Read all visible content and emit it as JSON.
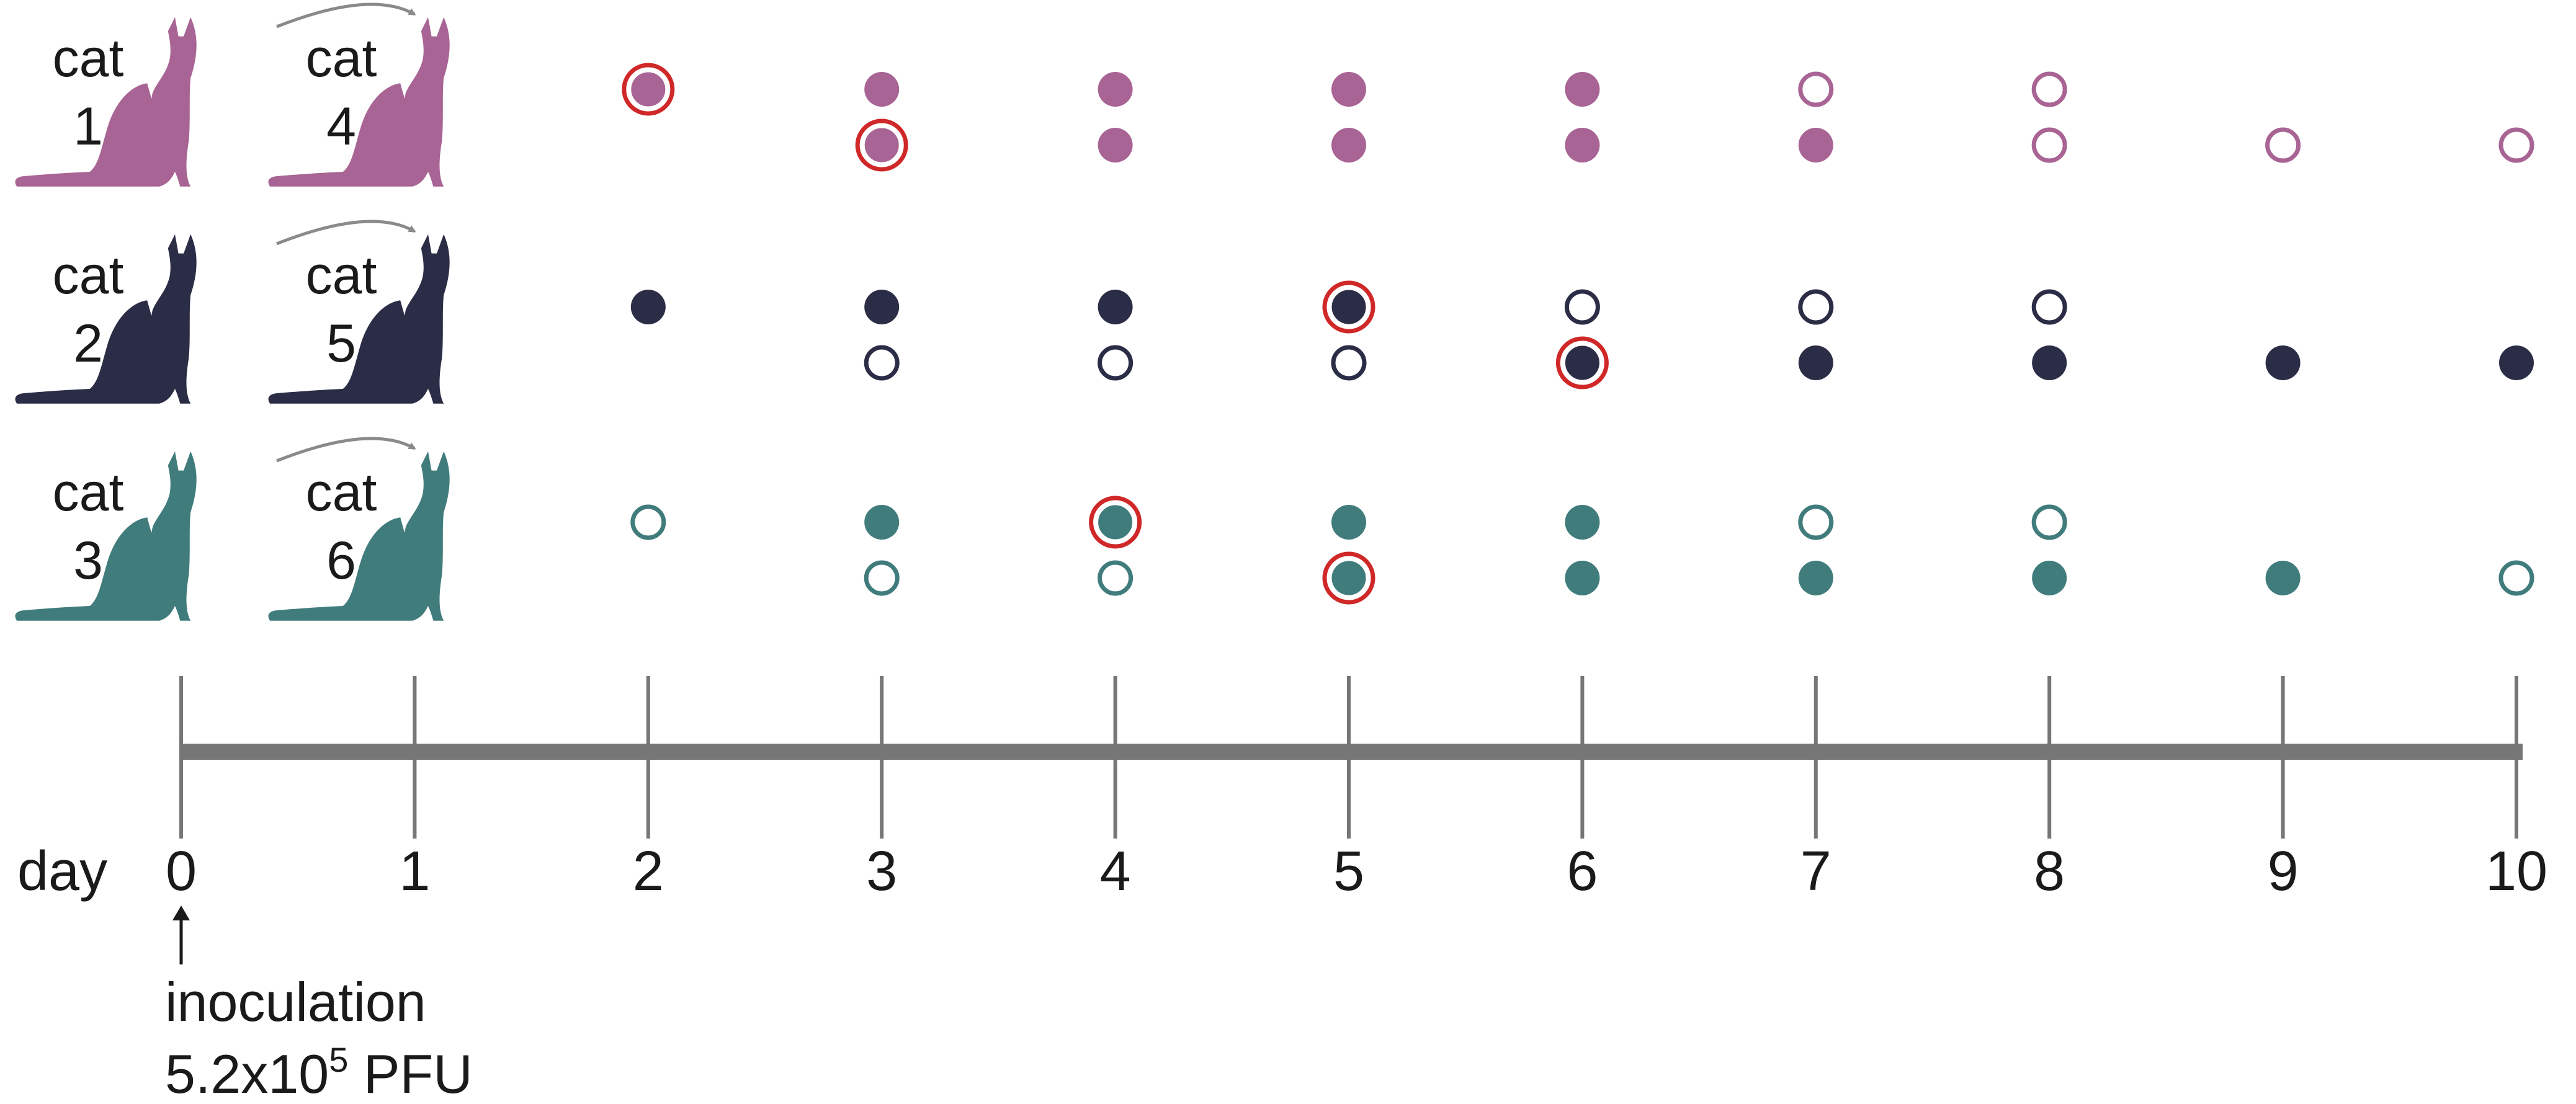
{
  "colors": {
    "pink": "#a86494",
    "navy": "#2b2d47",
    "teal": "#417c7c",
    "axis": "#767676",
    "arrow": "#8a8a8a",
    "highlight": "#d02828"
  },
  "axis": {
    "label": "day",
    "days": [
      "0",
      "1",
      "2",
      "3",
      "4",
      "5",
      "6",
      "7",
      "8",
      "9",
      "10"
    ]
  },
  "inoculation": {
    "line1": "inoculation",
    "line2_prefix": "5.2x10",
    "line2_exp": "5",
    "line2_suffix": " PFU"
  },
  "pairs": [
    {
      "color": "pink",
      "donor": {
        "word": "cat",
        "number": "1"
      },
      "contact": {
        "word": "cat",
        "number": "4"
      },
      "donor_obs": [
        {
          "day": 2,
          "filled": true,
          "highlight": true
        },
        {
          "day": 3,
          "filled": true,
          "highlight": false
        },
        {
          "day": 4,
          "filled": true,
          "highlight": false
        },
        {
          "day": 5,
          "filled": true,
          "highlight": false
        },
        {
          "day": 6,
          "filled": true,
          "highlight": false
        },
        {
          "day": 7,
          "filled": false,
          "highlight": false
        },
        {
          "day": 8,
          "filled": false,
          "highlight": false
        }
      ],
      "contact_obs": [
        {
          "day": 3,
          "filled": true,
          "highlight": true
        },
        {
          "day": 4,
          "filled": true,
          "highlight": false
        },
        {
          "day": 5,
          "filled": true,
          "highlight": false
        },
        {
          "day": 6,
          "filled": true,
          "highlight": false
        },
        {
          "day": 7,
          "filled": true,
          "highlight": false
        },
        {
          "day": 8,
          "filled": false,
          "highlight": false
        },
        {
          "day": 9,
          "filled": false,
          "highlight": false
        },
        {
          "day": 10,
          "filled": false,
          "highlight": false
        }
      ]
    },
    {
      "color": "navy",
      "donor": {
        "word": "cat",
        "number": "2"
      },
      "contact": {
        "word": "cat",
        "number": "5"
      },
      "donor_obs": [
        {
          "day": 2,
          "filled": true,
          "highlight": false
        },
        {
          "day": 3,
          "filled": true,
          "highlight": false
        },
        {
          "day": 4,
          "filled": true,
          "highlight": false
        },
        {
          "day": 5,
          "filled": true,
          "highlight": true
        },
        {
          "day": 6,
          "filled": false,
          "highlight": false
        },
        {
          "day": 7,
          "filled": false,
          "highlight": false
        },
        {
          "day": 8,
          "filled": false,
          "highlight": false
        }
      ],
      "contact_obs": [
        {
          "day": 3,
          "filled": false,
          "highlight": false
        },
        {
          "day": 4,
          "filled": false,
          "highlight": false
        },
        {
          "day": 5,
          "filled": false,
          "highlight": false
        },
        {
          "day": 6,
          "filled": true,
          "highlight": true
        },
        {
          "day": 7,
          "filled": true,
          "highlight": false
        },
        {
          "day": 8,
          "filled": true,
          "highlight": false
        },
        {
          "day": 9,
          "filled": true,
          "highlight": false
        },
        {
          "day": 10,
          "filled": true,
          "highlight": false
        }
      ]
    },
    {
      "color": "teal",
      "donor": {
        "word": "cat",
        "number": "3"
      },
      "contact": {
        "word": "cat",
        "number": "6"
      },
      "donor_obs": [
        {
          "day": 2,
          "filled": false,
          "highlight": false
        },
        {
          "day": 3,
          "filled": true,
          "highlight": false
        },
        {
          "day": 4,
          "filled": true,
          "highlight": true
        },
        {
          "day": 5,
          "filled": true,
          "highlight": false
        },
        {
          "day": 6,
          "filled": true,
          "highlight": false
        },
        {
          "day": 7,
          "filled": false,
          "highlight": false
        },
        {
          "day": 8,
          "filled": false,
          "highlight": false
        }
      ],
      "contact_obs": [
        {
          "day": 3,
          "filled": false,
          "highlight": false
        },
        {
          "day": 4,
          "filled": false,
          "highlight": false
        },
        {
          "day": 5,
          "filled": true,
          "highlight": true
        },
        {
          "day": 6,
          "filled": true,
          "highlight": false
        },
        {
          "day": 7,
          "filled": true,
          "highlight": false
        },
        {
          "day": 8,
          "filled": true,
          "highlight": false
        },
        {
          "day": 9,
          "filled": true,
          "highlight": false
        },
        {
          "day": 10,
          "filled": false,
          "highlight": false
        }
      ]
    }
  ]
}
